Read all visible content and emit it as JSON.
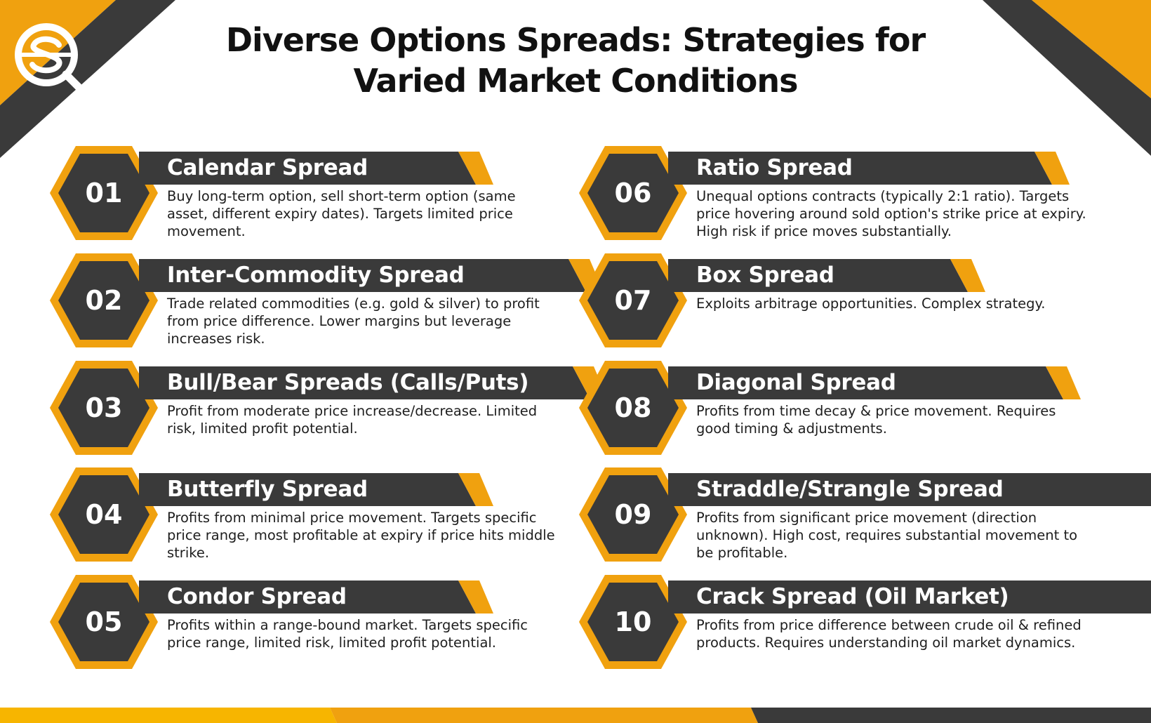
{
  "title_line1": "Diverse Options Spreads: Strategies for",
  "title_line2": "Varied Market Conditions",
  "colors": {
    "accent": "#F0A10F",
    "dark": "#3A3A3A",
    "yellow": "#F7B500"
  },
  "cards": [
    {
      "num": "01",
      "title": "Calendar Spread",
      "desc": "Buy long-term option, sell short-term option (same asset, different expiry dates). Targets limited price movement."
    },
    {
      "num": "02",
      "title": "Inter-Commodity Spread",
      "desc": "Trade related commodities (e.g. gold & silver) to profit from price difference. Lower margins but leverage increases risk."
    },
    {
      "num": "03",
      "title": "Bull/Bear Spreads (Calls/Puts)",
      "desc": "Profit from moderate price increase/decrease. Limited risk, limited profit potential."
    },
    {
      "num": "04",
      "title": "Butterfly Spread",
      "desc": "Profits from minimal price movement. Targets specific price range, most profitable at expiry if price hits middle strike."
    },
    {
      "num": "05",
      "title": "Condor Spread",
      "desc": "Profits within a range-bound market. Targets specific price range, limited risk, limited profit potential."
    },
    {
      "num": "06",
      "title": "Ratio Spread",
      "desc": "Unequal options contracts (typically 2:1 ratio). Targets price hovering around sold option's strike price at expiry. High risk if price moves substantially."
    },
    {
      "num": "07",
      "title": "Box Spread",
      "desc": "Exploits arbitrage opportunities. Complex strategy."
    },
    {
      "num": "08",
      "title": "Diagonal Spread",
      "desc": "Profits from time decay & price movement. Requires good timing & adjustments."
    },
    {
      "num": "09",
      "title": "Straddle/Strangle Spread",
      "desc": "Profits from significant price movement (direction unknown). High cost, requires substantial movement to be profitable."
    },
    {
      "num": "10",
      "title": "Crack Spread (Oil Market)",
      "desc": "Profits from price difference between crude oil & refined products. Requires understanding oil market dynamics."
    }
  ]
}
